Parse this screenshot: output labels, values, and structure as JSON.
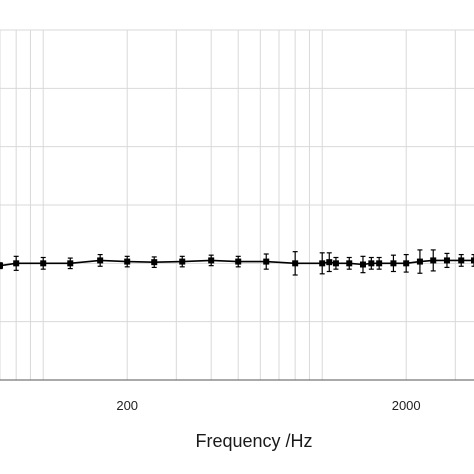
{
  "chart_data": {
    "type": "line",
    "title": "",
    "xlabel": "Frequency /Hz",
    "ylabel": "",
    "x_scale": "log",
    "xlim": [
      70,
      3500
    ],
    "ylim": [
      0,
      6
    ],
    "x_ticks": [
      {
        "value": 200,
        "label": "200"
      },
      {
        "value": 2000,
        "label": "2000"
      }
    ],
    "grid": true,
    "legend": "none",
    "marker": "square",
    "error_bars": true,
    "colors": {
      "line": "#000000",
      "grid": "#d9d9d9",
      "axis": "#555555"
    },
    "series": [
      {
        "x": [
          70,
          80,
          100,
          125,
          160,
          200,
          250,
          315,
          400,
          500,
          630,
          800,
          1000,
          1060,
          1120,
          1250,
          1400,
          1500,
          1600,
          1800,
          2000,
          2240,
          2500,
          2800,
          3150,
          3500
        ],
        "y": [
          1.96,
          2.0,
          2.0,
          2.0,
          2.05,
          2.03,
          2.02,
          2.03,
          2.05,
          2.03,
          2.03,
          2.0,
          2.0,
          2.02,
          2.0,
          2.0,
          1.98,
          2.0,
          2.0,
          2.0,
          2.0,
          2.03,
          2.05,
          2.05,
          2.05,
          2.05
        ],
        "err": [
          0.05,
          0.12,
          0.1,
          0.09,
          0.1,
          0.09,
          0.09,
          0.09,
          0.09,
          0.09,
          0.13,
          0.2,
          0.18,
          0.16,
          0.1,
          0.1,
          0.14,
          0.1,
          0.1,
          0.14,
          0.15,
          0.2,
          0.18,
          0.12,
          0.1,
          0.1
        ]
      }
    ]
  }
}
